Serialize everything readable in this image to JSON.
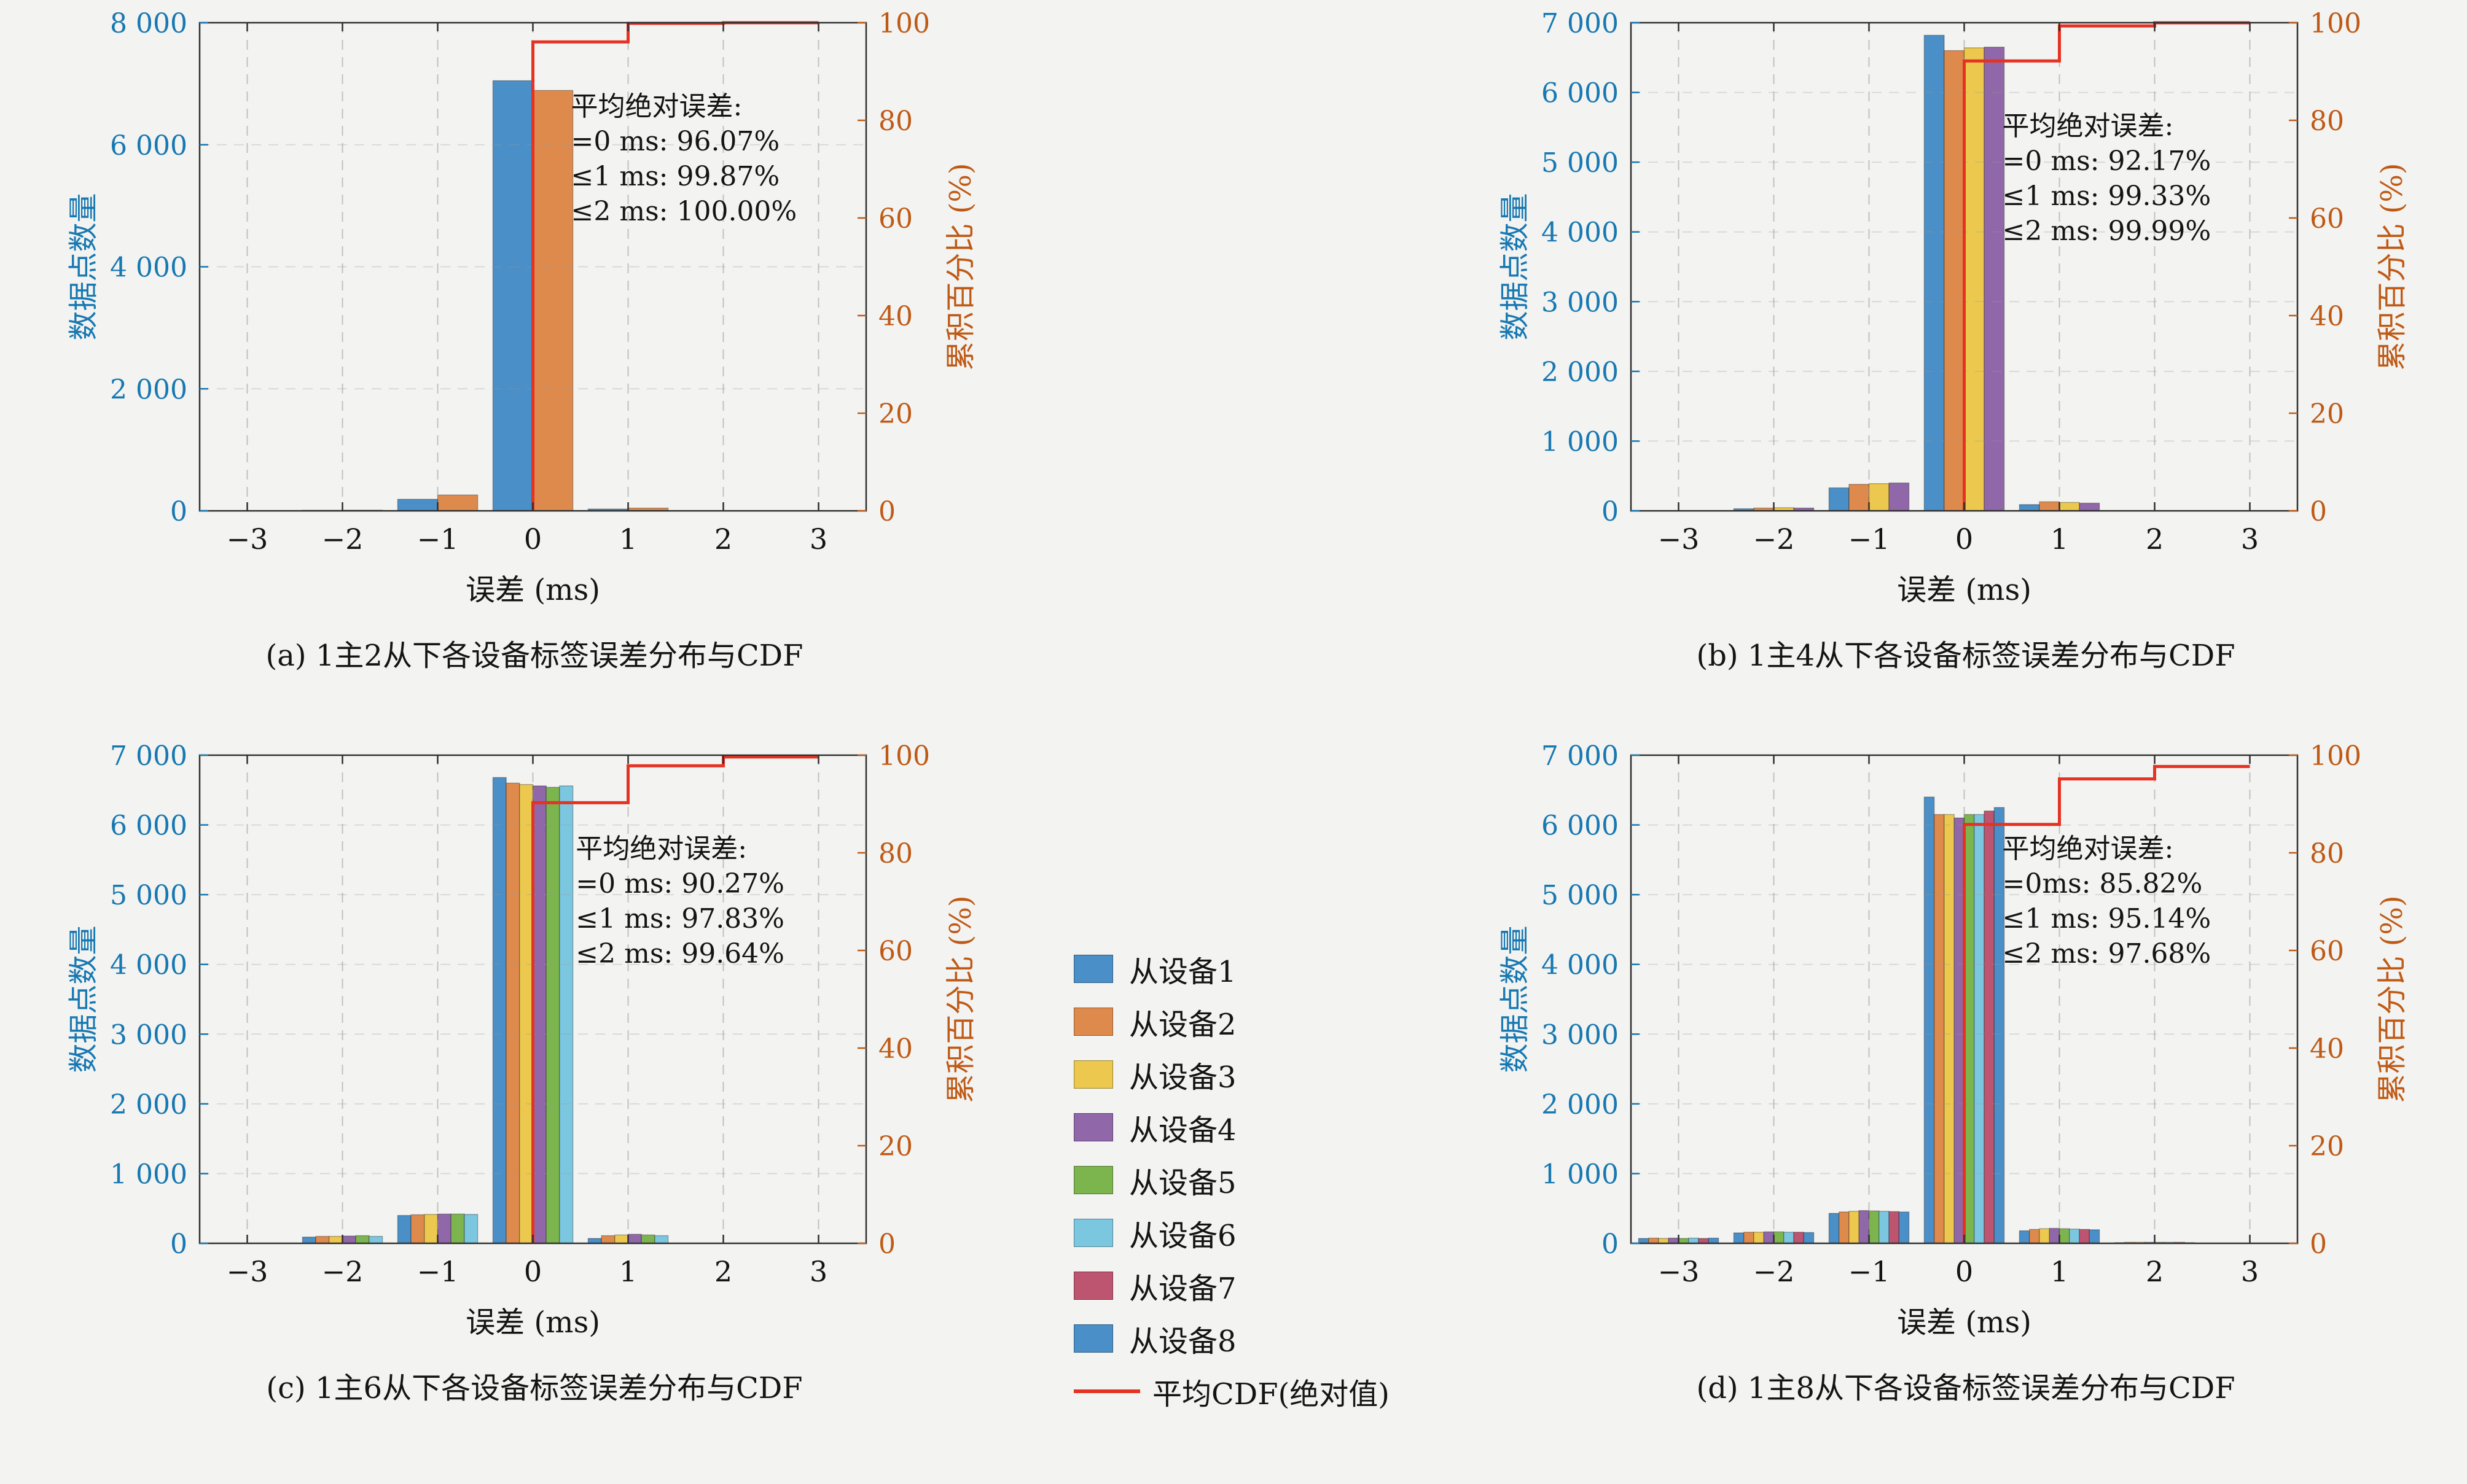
{
  "figure": {
    "background": "#f3f3f1",
    "text_color": "#1a1a1a",
    "grid_color": "#999999",
    "box_color": "#2f2f2f"
  },
  "palette": [
    "#4a8fc7",
    "#df8a4d",
    "#ecc94e",
    "#9067a9",
    "#7cb44e",
    "#7cc7e0",
    "#bd5470",
    "#4a8fc7"
  ],
  "cdf_color": "#e53222",
  "axis_colors": {
    "left": "#1778b2",
    "right": "#bf5a16"
  },
  "legend": {
    "items": [
      {
        "label": "从设备1",
        "color": "#4a8fc7"
      },
      {
        "label": "从设备2",
        "color": "#df8a4d"
      },
      {
        "label": "从设备3",
        "color": "#ecc94e"
      },
      {
        "label": "从设备4",
        "color": "#9067a9"
      },
      {
        "label": "从设备5",
        "color": "#7cb44e"
      },
      {
        "label": "从设备6",
        "color": "#7cc7e0"
      },
      {
        "label": "从设备7",
        "color": "#bd5470"
      },
      {
        "label": "从设备8",
        "color": "#4a8fc7"
      }
    ],
    "line": {
      "label": "平均CDF(绝对值)",
      "color": "#e53222"
    }
  },
  "chart_data": [
    {
      "id": "a",
      "type": "bar",
      "caption": "(a) 1主2从下各设备标签误差分布与CDF",
      "xlabel": "误差 (ms)",
      "ylabel_left": "数据点数量",
      "ylabel_right": "累积百分比 (%)",
      "xlim": [
        -3.5,
        3.5
      ],
      "ylim_left": [
        0,
        8000
      ],
      "ylim_right": [
        0,
        100
      ],
      "xticks": {
        "values": [
          -3,
          -2,
          -1,
          0,
          1,
          2,
          3
        ],
        "labels": [
          "−3",
          "−2",
          "−1",
          "0",
          "1",
          "2",
          "3"
        ]
      },
      "yticks_left": {
        "values": [
          0,
          2000,
          4000,
          6000,
          8000
        ],
        "labels": [
          "0",
          "2 000",
          "4 000",
          "6 000",
          "8 000"
        ]
      },
      "yticks_right": {
        "values": [
          0,
          20,
          40,
          60,
          80,
          100
        ],
        "labels": [
          "0",
          "20",
          "40",
          "60",
          "80",
          "100"
        ]
      },
      "categories": [
        -3,
        -2,
        -1,
        0,
        1,
        2,
        3
      ],
      "series": [
        {
          "name": "从设备1",
          "values": [
            0,
            10,
            190,
            7050,
            30,
            0,
            0
          ]
        },
        {
          "name": "从设备2",
          "values": [
            0,
            12,
            260,
            6890,
            45,
            0,
            0
          ]
        }
      ],
      "cdf": {
        "name": "平均CDF(绝对值)",
        "points": [
          [
            0,
            0
          ],
          [
            0,
            96.07
          ],
          [
            1,
            96.07
          ],
          [
            1,
            99.87
          ],
          [
            2,
            99.87
          ],
          [
            2,
            100.0
          ],
          [
            3,
            100.0
          ]
        ]
      },
      "annotation": {
        "x": 0.4,
        "y_pct": 81,
        "lines": [
          "平均绝对误差:",
          "=0 ms: 96.07%",
          "≤1 ms: 99.87%",
          "≤2 ms: 100.00%"
        ]
      }
    },
    {
      "id": "b",
      "type": "bar",
      "caption": "(b) 1主4从下各设备标签误差分布与CDF",
      "xlabel": "误差 (ms)",
      "ylabel_left": "数据点数量",
      "ylabel_right": "累积百分比 (%)",
      "xlim": [
        -3.5,
        3.5
      ],
      "ylim_left": [
        0,
        7000
      ],
      "ylim_right": [
        0,
        100
      ],
      "xticks": {
        "values": [
          -3,
          -2,
          -1,
          0,
          1,
          2,
          3
        ],
        "labels": [
          "−3",
          "−2",
          "−1",
          "0",
          "1",
          "2",
          "3"
        ]
      },
      "yticks_left": {
        "values": [
          0,
          1000,
          2000,
          3000,
          4000,
          5000,
          6000,
          7000
        ],
        "labels": [
          "0",
          "1 000",
          "2 000",
          "3 000",
          "4 000",
          "5 000",
          "6 000",
          "7 000"
        ]
      },
      "yticks_right": {
        "values": [
          0,
          20,
          40,
          60,
          80,
          100
        ],
        "labels": [
          "0",
          "20",
          "40",
          "60",
          "80",
          "100"
        ]
      },
      "categories": [
        -3,
        -2,
        -1,
        0,
        1,
        2,
        3
      ],
      "series": [
        {
          "name": "从设备1",
          "values": [
            0,
            30,
            330,
            6820,
            90,
            0,
            0
          ]
        },
        {
          "name": "从设备2",
          "values": [
            0,
            40,
            380,
            6600,
            130,
            0,
            0
          ]
        },
        {
          "name": "从设备3",
          "values": [
            0,
            45,
            390,
            6640,
            120,
            0,
            0
          ]
        },
        {
          "name": "从设备4",
          "values": [
            0,
            40,
            400,
            6650,
            110,
            0,
            0
          ]
        }
      ],
      "cdf": {
        "name": "平均CDF(绝对值)",
        "points": [
          [
            0,
            0
          ],
          [
            0,
            92.17
          ],
          [
            1,
            92.17
          ],
          [
            1,
            99.33
          ],
          [
            2,
            99.33
          ],
          [
            2,
            99.99
          ],
          [
            3,
            99.99
          ]
        ]
      },
      "annotation": {
        "x": 0.4,
        "y_pct": 77,
        "lines": [
          "平均绝对误差:",
          "=0 ms: 92.17%",
          "≤1 ms: 99.33%",
          "≤2 ms: 99.99%"
        ]
      }
    },
    {
      "id": "c",
      "type": "bar",
      "caption": "(c) 1主6从下各设备标签误差分布与CDF",
      "xlabel": "误差 (ms)",
      "ylabel_left": "数据点数量",
      "ylabel_right": "累积百分比 (%)",
      "xlim": [
        -3.5,
        3.5
      ],
      "ylim_left": [
        0,
        7000
      ],
      "ylim_right": [
        0,
        100
      ],
      "xticks": {
        "values": [
          -3,
          -2,
          -1,
          0,
          1,
          2,
          3
        ],
        "labels": [
          "−3",
          "−2",
          "−1",
          "0",
          "1",
          "2",
          "3"
        ]
      },
      "yticks_left": {
        "values": [
          0,
          1000,
          2000,
          3000,
          4000,
          5000,
          6000,
          7000
        ],
        "labels": [
          "0",
          "1 000",
          "2 000",
          "3 000",
          "4 000",
          "5 000",
          "6 000",
          "7 000"
        ]
      },
      "yticks_right": {
        "values": [
          0,
          20,
          40,
          60,
          80,
          100
        ],
        "labels": [
          "0",
          "20",
          "40",
          "60",
          "80",
          "100"
        ]
      },
      "categories": [
        -3,
        -2,
        -1,
        0,
        1,
        2,
        3
      ],
      "series": [
        {
          "name": "从设备1",
          "values": [
            0,
            90,
            400,
            6680,
            70,
            0,
            0
          ]
        },
        {
          "name": "从设备2",
          "values": [
            0,
            100,
            410,
            6600,
            110,
            0,
            0
          ]
        },
        {
          "name": "从设备3",
          "values": [
            0,
            100,
            415,
            6580,
            120,
            0,
            0
          ]
        },
        {
          "name": "从设备4",
          "values": [
            0,
            105,
            420,
            6560,
            130,
            0,
            0
          ]
        },
        {
          "name": "从设备5",
          "values": [
            0,
            110,
            420,
            6540,
            120,
            0,
            0
          ]
        },
        {
          "name": "从设备6",
          "values": [
            0,
            100,
            415,
            6560,
            110,
            0,
            0
          ]
        }
      ],
      "cdf": {
        "name": "平均CDF(绝对值)",
        "points": [
          [
            0,
            0
          ],
          [
            0,
            90.27
          ],
          [
            1,
            90.27
          ],
          [
            1,
            97.83
          ],
          [
            2,
            97.83
          ],
          [
            2,
            99.64
          ],
          [
            3,
            99.64
          ]
        ]
      },
      "annotation": {
        "x": 0.45,
        "y_pct": 79,
        "lines": [
          "平均绝对误差:",
          "=0 ms: 90.27%",
          "≤1 ms: 97.83%",
          "≤2 ms: 99.64%"
        ]
      }
    },
    {
      "id": "d",
      "type": "bar",
      "caption": "(d) 1主8从下各设备标签误差分布与CDF",
      "xlabel": "误差 (ms)",
      "ylabel_left": "数据点数量",
      "ylabel_right": "累积百分比 (%)",
      "xlim": [
        -3.5,
        3.5
      ],
      "ylim_left": [
        0,
        7000
      ],
      "ylim_right": [
        0,
        100
      ],
      "xticks": {
        "values": [
          -3,
          -2,
          -1,
          0,
          1,
          2,
          3
        ],
        "labels": [
          "−3",
          "−2",
          "−1",
          "0",
          "1",
          "2",
          "3"
        ]
      },
      "yticks_left": {
        "values": [
          0,
          1000,
          2000,
          3000,
          4000,
          5000,
          6000,
          7000
        ],
        "labels": [
          "0",
          "1 000",
          "2 000",
          "3 000",
          "4 000",
          "5 000",
          "6 000",
          "7 000"
        ]
      },
      "yticks_right": {
        "values": [
          0,
          20,
          40,
          60,
          80,
          100
        ],
        "labels": [
          "0",
          "20",
          "40",
          "60",
          "80",
          "100"
        ]
      },
      "categories": [
        -3,
        -2,
        -1,
        0,
        1,
        2,
        3
      ],
      "series": [
        {
          "name": "从设备1",
          "values": [
            70,
            150,
            430,
            6400,
            180,
            10,
            0
          ]
        },
        {
          "name": "从设备2",
          "values": [
            75,
            160,
            450,
            6150,
            200,
            15,
            0
          ]
        },
        {
          "name": "从设备3",
          "values": [
            70,
            160,
            460,
            6150,
            210,
            15,
            0
          ]
        },
        {
          "name": "从设备4",
          "values": [
            75,
            165,
            470,
            6100,
            215,
            15,
            0
          ]
        },
        {
          "name": "从设备5",
          "values": [
            70,
            165,
            465,
            6150,
            210,
            15,
            0
          ]
        },
        {
          "name": "从设备6",
          "values": [
            75,
            160,
            460,
            6150,
            205,
            15,
            0
          ]
        },
        {
          "name": "从设备7",
          "values": [
            70,
            160,
            455,
            6200,
            200,
            15,
            0
          ]
        },
        {
          "name": "从设备8",
          "values": [
            75,
            155,
            450,
            6250,
            195,
            10,
            0
          ]
        }
      ],
      "cdf": {
        "name": "平均CDF(绝对值)",
        "points": [
          [
            0,
            0
          ],
          [
            0,
            85.82
          ],
          [
            1,
            85.82
          ],
          [
            1,
            95.14
          ],
          [
            2,
            95.14
          ],
          [
            2,
            97.68
          ],
          [
            3,
            97.68
          ]
        ]
      },
      "annotation": {
        "x": 0.4,
        "y_pct": 79,
        "lines": [
          "平均绝对误差:",
          "=0ms: 85.82%",
          "≤1 ms: 95.14%",
          "≤2 ms: 97.68%"
        ]
      }
    }
  ]
}
